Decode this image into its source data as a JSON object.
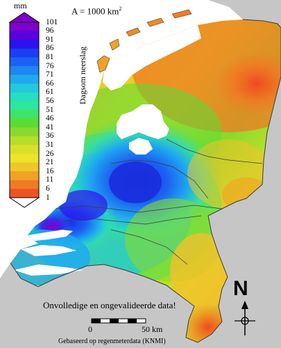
{
  "legend": {
    "unit": "mm",
    "title": "Dagsom neerslag",
    "ticks": [
      "101",
      "96",
      "91",
      "86",
      "81",
      "76",
      "71",
      "66",
      "61",
      "56",
      "51",
      "46",
      "41",
      "36",
      "31",
      "26",
      "21",
      "16",
      "11",
      "6",
      "1"
    ],
    "colors": [
      "#7f00cc",
      "#5a00e0",
      "#2b12ee",
      "#1a3ef2",
      "#1c62f2",
      "#1d86f0",
      "#1faaee",
      "#23c8dc",
      "#29ddc0",
      "#2fe69c",
      "#3ee36a",
      "#5adc33",
      "#88da2c",
      "#b6de2a",
      "#d9e02a",
      "#ece32c",
      "#f0c62a",
      "#f1a225",
      "#f07a23",
      "#ef5322",
      "#ffffff"
    ]
  },
  "area_label": "A = 1000 km",
  "area_unit_sup": "2",
  "warning": "Onvolledige en ongevalideerde data!",
  "scale": {
    "start": "0",
    "end": "50 km"
  },
  "source": "Gebaseerd op regenmeterdata  (KNMI)",
  "north": "N",
  "colors": {
    "sea": "#ffffff",
    "land_neighbor": "#c6c6c6",
    "border": "#3a3a3a"
  }
}
